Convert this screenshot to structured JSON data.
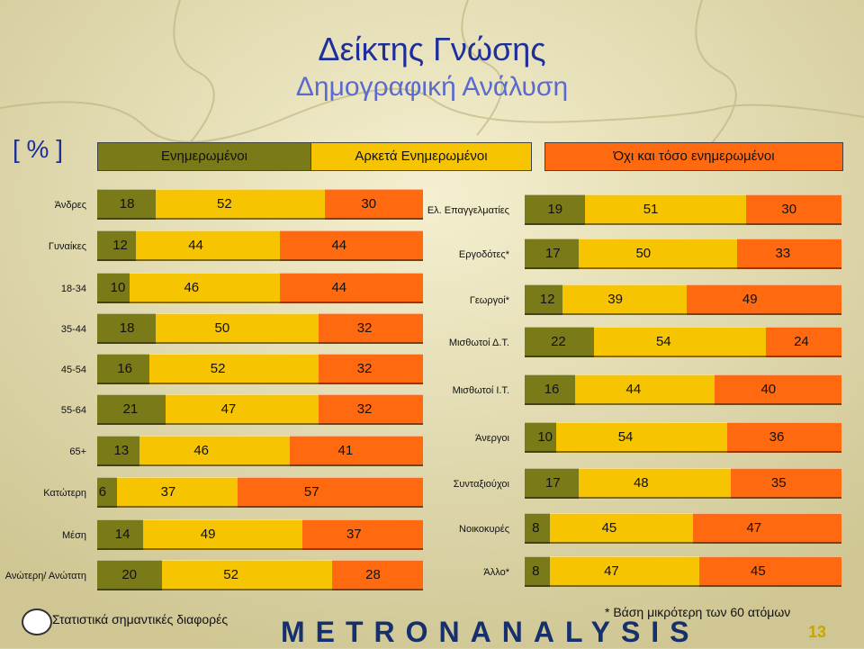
{
  "title": "Δείκτης Γνώσης",
  "subtitle": "Δημογραφική Ανάλυση",
  "unit_label": "[ % ]",
  "colors": {
    "informed": "#7b7a18",
    "fairly": "#f6c400",
    "not_very": "#ff6a10",
    "background": "#d7d0a2",
    "title": "#1f2f9a"
  },
  "legend": [
    "Ενημερωμένοι",
    "Αρκετά Ενημερωμένοι",
    "Όχι και τόσο ενημερωμένοι"
  ],
  "chart_data": [
    {
      "type": "bar",
      "stacked": true,
      "orientation": "horizontal",
      "categories": [
        "Άνδρες",
        "Γυναίκες",
        "18-34",
        "35-44",
        "45-54",
        "55-64",
        "65+",
        "Κατώτερη",
        "Μέση",
        "Ανώτερη/ Ανώτατη"
      ],
      "series": [
        {
          "name": "Ενημερωμένοι",
          "values": [
            18,
            12,
            10,
            18,
            16,
            21,
            13,
            6,
            14,
            20
          ]
        },
        {
          "name": "Αρκετά Ενημερωμένοι",
          "values": [
            52,
            44,
            46,
            50,
            52,
            47,
            46,
            37,
            49,
            52
          ]
        },
        {
          "name": "Όχι και τόσο ενημερωμένοι",
          "values": [
            30,
            44,
            44,
            32,
            32,
            32,
            41,
            57,
            37,
            28
          ]
        }
      ]
    },
    {
      "type": "bar",
      "stacked": true,
      "orientation": "horizontal",
      "categories": [
        "Ελ. Επαγγελματίες",
        "Εργοδότες*",
        "Γεωργοί*",
        "Μισθωτοί Δ.Τ.",
        "Μισθωτοί Ι.Τ.",
        "Άνεργοι",
        "Συνταξιούχοι",
        "Νοικοκυρές",
        "Άλλο*"
      ],
      "series": [
        {
          "name": "Ενημερωμένοι",
          "values": [
            19,
            17,
            12,
            22,
            16,
            10,
            17,
            8,
            8
          ]
        },
        {
          "name": "Αρκετά Ενημερωμένοι",
          "values": [
            51,
            50,
            39,
            54,
            44,
            54,
            48,
            45,
            47
          ]
        },
        {
          "name": "Όχι και τόσο ενημερωμένοι",
          "values": [
            30,
            33,
            49,
            24,
            40,
            36,
            35,
            47,
            45
          ]
        }
      ]
    }
  ],
  "footer": {
    "significance": "Στατιστικά σημαντικές διαφορές",
    "note": "* Βάση μικρότερη των 60 ατόμων",
    "brand": "METRONANALYSIS",
    "page": "13"
  }
}
